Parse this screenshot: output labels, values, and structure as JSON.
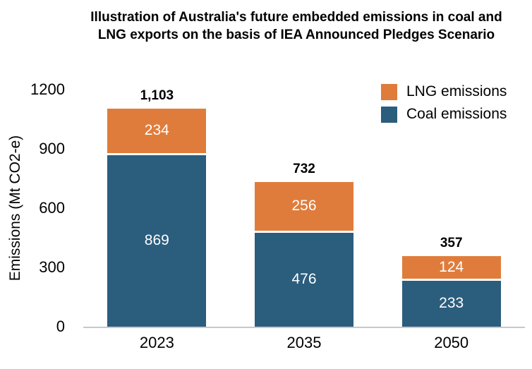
{
  "chart_data": {
    "type": "bar",
    "stacked": true,
    "title": "Illustration of Australia's future embedded emissions in coal and LNG exports on the basis of IEA Announced Pledges Scenario",
    "ylabel": "Emissions (Mt CO2-e)",
    "xlabel": "",
    "categories": [
      "2023",
      "2035",
      "2050"
    ],
    "series": [
      {
        "name": "Coal emissions",
        "color": "#2b5d7d",
        "values": [
          869,
          476,
          233
        ]
      },
      {
        "name": "LNG emissions",
        "color": "#e07c3b",
        "values": [
          234,
          256,
          124
        ]
      }
    ],
    "totals": [
      "1,103",
      "732",
      "357"
    ],
    "ylim": [
      0,
      1200
    ],
    "yticks": [
      0,
      300,
      600,
      900,
      1200
    ],
    "grid": false,
    "legend": [
      "LNG emissions",
      "Coal emissions"
    ],
    "legend_position": "top-right",
    "value_label_color": "#ffffff",
    "total_label_color": "#000000"
  }
}
